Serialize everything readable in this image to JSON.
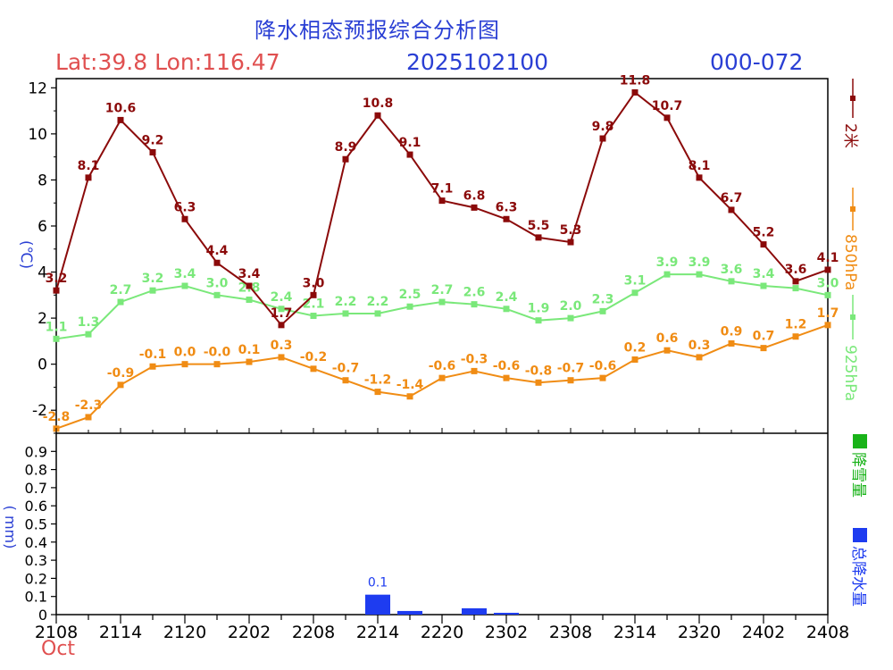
{
  "header": {
    "title": "降水相态预报综合分析图",
    "location": "Lat:39.8  Lon:116.47",
    "init_time": "2025102100",
    "forecast_range": "000-072",
    "month": "Oct"
  },
  "colors": {
    "t2m": "#8b0a0a",
    "t850": "#f08c14",
    "t925": "#7ae87a",
    "snow": "#19b319",
    "precip": "#1e3cf0",
    "title": "#2a3fd4",
    "red_text": "#e05050"
  },
  "chart_data": [
    {
      "type": "line",
      "title": "降水相态预报综合分析图",
      "ylabel": "(℃)",
      "ylim": [
        -3.0,
        12.4
      ],
      "yticks": [
        -2,
        0,
        2,
        4,
        6,
        8,
        10,
        12
      ],
      "x": [
        0,
        3,
        6,
        9,
        12,
        15,
        18,
        21,
        24,
        27,
        30,
        33,
        36,
        39,
        42,
        45,
        48,
        51,
        54,
        57,
        60,
        63,
        66,
        69,
        72
      ],
      "xlim": [
        0,
        72
      ],
      "series": [
        {
          "name": "2米",
          "key": "t2m",
          "values": [
            3.2,
            8.1,
            10.6,
            9.2,
            6.3,
            4.4,
            3.4,
            1.7,
            3.0,
            8.9,
            10.8,
            9.1,
            7.1,
            6.8,
            6.3,
            5.5,
            5.3,
            9.8,
            11.8,
            10.7,
            8.1,
            6.7,
            5.2,
            3.6,
            4.1
          ],
          "labels": [
            "3.2",
            "8.1",
            "10.6",
            "9.2",
            "6.3",
            "4.4",
            "3.4",
            "1.7",
            "3.0",
            "8.9",
            "10.8",
            "9.1",
            "7.1",
            "6.8",
            "6.3",
            "5.5",
            "5.3",
            "9.8",
            "11.8",
            "10.7",
            "8.1",
            "6.7",
            "5.2",
            "3.6",
            "4.1"
          ]
        },
        {
          "name": "850hPa",
          "key": "t850",
          "values": [
            -2.8,
            -2.3,
            -0.9,
            -0.1,
            0.0,
            -0.0,
            0.1,
            0.3,
            -0.2,
            -0.7,
            -1.2,
            -1.4,
            -0.6,
            -0.3,
            -0.6,
            -0.8,
            -0.7,
            -0.6,
            0.2,
            0.6,
            0.3,
            0.9,
            0.7,
            1.2,
            1.7
          ],
          "labels": [
            "-2.8",
            "-2.3",
            "-0.9",
            "-0.1",
            "0.0",
            "-0.0",
            "0.1",
            "0.3",
            "-0.2",
            "-0.7",
            "-1.2",
            "-1.4",
            "-0.6",
            "-0.3",
            "-0.6",
            "-0.8",
            "-0.7",
            "-0.6",
            "0.2",
            "0.6",
            "0.3",
            "0.9",
            "0.7",
            "1.2",
            "1.7"
          ]
        },
        {
          "name": "925hPa",
          "key": "t925",
          "values": [
            1.1,
            1.3,
            2.7,
            3.2,
            3.4,
            3.0,
            2.8,
            2.4,
            2.1,
            2.2,
            2.2,
            2.5,
            2.7,
            2.6,
            2.4,
            1.9,
            2.0,
            2.3,
            3.1,
            3.9,
            3.9,
            3.6,
            3.4,
            3.3,
            3.0
          ],
          "labels": [
            "1.1",
            "1.3",
            "2.7",
            "3.2",
            "3.4",
            "3.0",
            "2.8",
            "2.4",
            "2.1",
            "2.2",
            "2.2",
            "2.5",
            "2.7",
            "2.6",
            "2.4",
            "1.9",
            "2.0",
            "2.3",
            "3.1",
            "3.9",
            "3.9",
            "3.6",
            "3.4",
            "",
            "3.0"
          ]
        }
      ]
    },
    {
      "type": "bar",
      "ylabel": "( mm)",
      "ylim": [
        0,
        1.0
      ],
      "yticks": [
        "0",
        "0.1",
        "0.2",
        "0.3",
        "0.4",
        "0.5",
        "0.6",
        "0.7",
        "0.8",
        "0.9"
      ],
      "xlabel_ticks": [
        "2108",
        "2114",
        "2120",
        "2202",
        "2208",
        "2214",
        "2220",
        "2302",
        "2308",
        "2314",
        "2320",
        "2402",
        "2408"
      ],
      "series": [
        {
          "name": "降雪量",
          "key": "snow",
          "bars": []
        },
        {
          "name": "总降水量",
          "key": "precip",
          "bars": [
            {
              "x": 30,
              "value": 0.11,
              "label": "0.1"
            },
            {
              "x": 33,
              "value": 0.02,
              "label": ""
            },
            {
              "x": 39,
              "value": 0.035,
              "label": ""
            },
            {
              "x": 42,
              "value": 0.01,
              "label": ""
            }
          ]
        }
      ]
    }
  ]
}
